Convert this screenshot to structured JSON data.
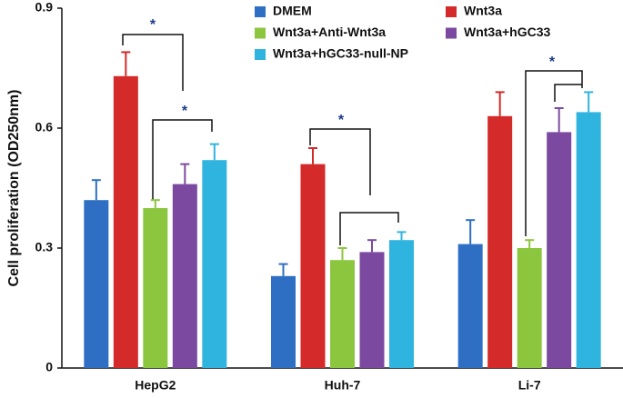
{
  "chart_data": {
    "type": "bar",
    "y_label": "Cell proliferation (OD250nm)",
    "categories": [
      "HepG2",
      "Huh-7",
      "Li-7"
    ],
    "series": [
      {
        "name": "DMEM",
        "color": "#2e6fc4",
        "values": [
          0.42,
          0.23,
          0.31
        ],
        "errors": [
          0.05,
          0.03,
          0.06
        ]
      },
      {
        "name": "Wnt3a",
        "color": "#d42a2a",
        "values": [
          0.73,
          0.51,
          0.63
        ],
        "errors": [
          0.06,
          0.04,
          0.06
        ]
      },
      {
        "name": "Wnt3a+Anti-Wnt3a",
        "color": "#8cc63f",
        "values": [
          0.4,
          0.27,
          0.3
        ],
        "errors": [
          0.02,
          0.03,
          0.02
        ]
      },
      {
        "name": "Wnt3a+hGC33",
        "color": "#7b4aa0",
        "values": [
          0.46,
          0.29,
          0.59
        ],
        "errors": [
          0.05,
          0.03,
          0.06
        ]
      },
      {
        "name": "Wnt3a+hGC33-null-NP",
        "color": "#2fb4e0",
        "values": [
          0.52,
          0.32,
          0.64
        ],
        "errors": [
          0.04,
          0.02,
          0.05
        ]
      }
    ],
    "ylim": [
      0,
      0.9
    ],
    "yticks": [
      0,
      0.3,
      0.6,
      0.9
    ],
    "annotations": [
      "*",
      "*",
      "*",
      "*"
    ]
  }
}
